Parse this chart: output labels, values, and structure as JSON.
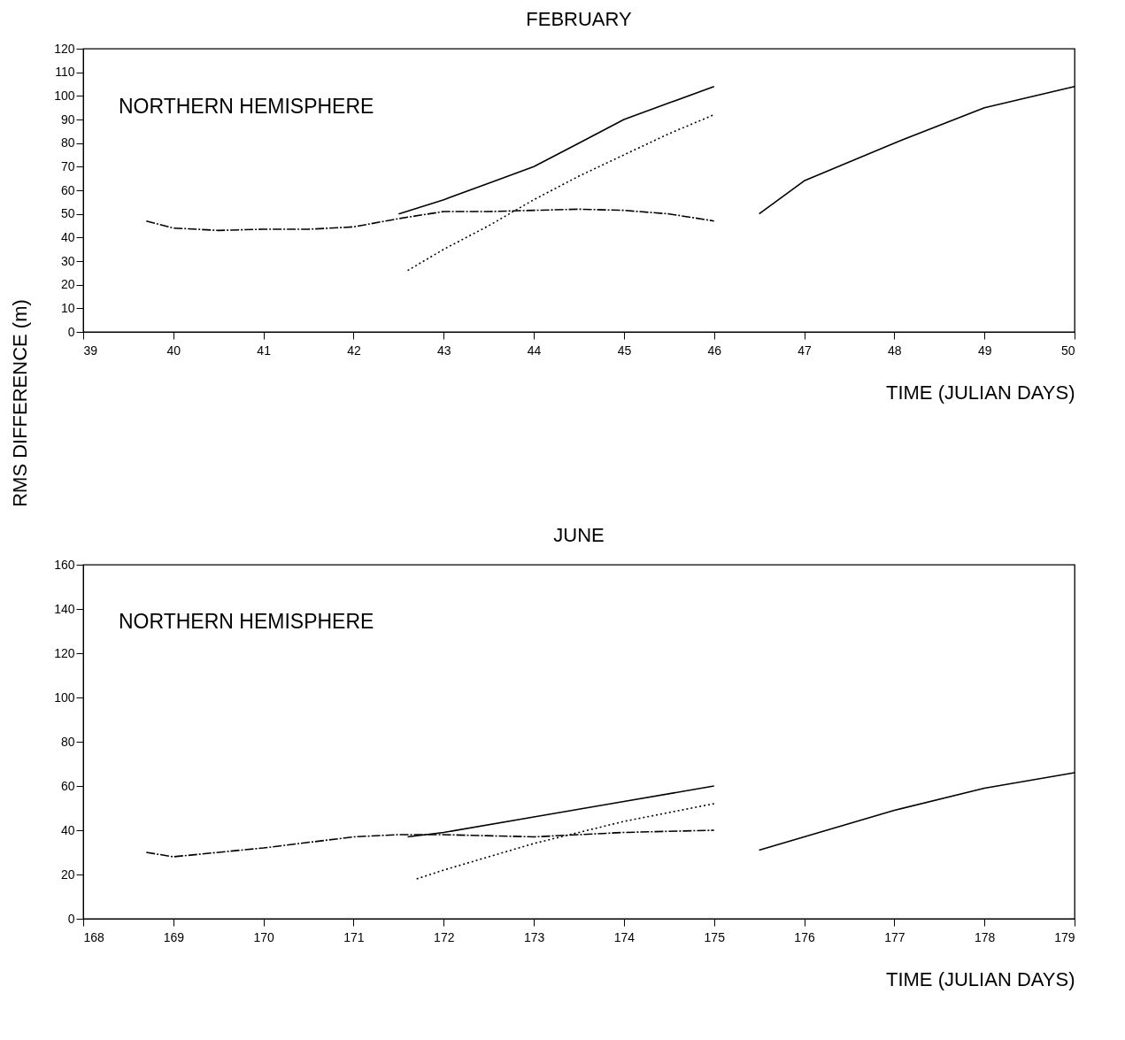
{
  "chart_data": [
    {
      "type": "line",
      "title": "FEBRUARY",
      "xlabel": "TIME (JULIAN DAYS)",
      "ylabel": "RMS DIFFERENCE (m)",
      "annotations": [
        "NORTHERN HEMISPHERE"
      ],
      "xlim": [
        39,
        50
      ],
      "xticks": [
        39,
        40,
        41,
        42,
        43,
        44,
        45,
        46,
        47,
        48,
        49,
        50
      ],
      "ylim": [
        0,
        120
      ],
      "yticks": [
        0,
        10,
        20,
        30,
        40,
        50,
        60,
        70,
        80,
        90,
        100,
        110,
        120
      ],
      "grid": false,
      "legend": false,
      "marker": "none",
      "series": [
        {
          "color": "#000000",
          "line_style": "solid",
          "x": [
            42.5,
            43,
            43.5,
            44,
            44.5,
            45,
            45.5,
            46,
            46.25,
            46.5,
            47,
            48,
            49,
            50
          ],
          "values": [
            50,
            56,
            63,
            70,
            80,
            90,
            97,
            104,
            null,
            50,
            64,
            80,
            95,
            104
          ]
        },
        {
          "color": "#000000",
          "line_style": "dotted",
          "x": [
            42.6,
            43,
            43.5,
            44,
            44.5,
            45,
            45.5,
            46
          ],
          "values": [
            26,
            35,
            45,
            56,
            66,
            75,
            84,
            92
          ]
        },
        {
          "color": "#000000",
          "line_style": "dashed",
          "x": [
            39.7,
            40,
            40.5,
            41,
            41.5,
            42,
            42.5,
            43,
            43.5,
            44,
            44.5,
            45,
            45.5,
            46
          ],
          "values": [
            47,
            44,
            43,
            43.5,
            43.5,
            44.5,
            48,
            51,
            51,
            51.5,
            52,
            51.5,
            50,
            47
          ]
        }
      ]
    },
    {
      "type": "line",
      "title": "JUNE",
      "xlabel": "TIME (JULIAN DAYS)",
      "annotations": [
        "NORTHERN HEMISPHERE"
      ],
      "xlim": [
        168,
        179
      ],
      "xticks": [
        168,
        169,
        170,
        171,
        172,
        173,
        174,
        175,
        176,
        177,
        178,
        179
      ],
      "ylim": [
        0,
        160
      ],
      "yticks": [
        0,
        20,
        40,
        60,
        80,
        100,
        120,
        140,
        160
      ],
      "grid": false,
      "legend": false,
      "marker": "none",
      "series": [
        {
          "color": "#000000",
          "line_style": "solid",
          "x": [
            171.6,
            172,
            173,
            174,
            175,
            175.25,
            175.5,
            176,
            177,
            178,
            179
          ],
          "values": [
            37,
            39,
            46,
            53,
            60,
            null,
            31,
            37,
            49,
            59,
            66
          ]
        },
        {
          "color": "#000000",
          "line_style": "dotted",
          "x": [
            171.7,
            172,
            173,
            174,
            175
          ],
          "values": [
            18,
            22,
            34,
            44,
            52
          ]
        },
        {
          "color": "#000000",
          "line_style": "dashed",
          "x": [
            168.7,
            169,
            170,
            171,
            171.5,
            172,
            173,
            174,
            175
          ],
          "values": [
            30,
            28,
            32,
            37,
            38,
            38,
            37,
            39,
            40
          ]
        }
      ]
    }
  ]
}
